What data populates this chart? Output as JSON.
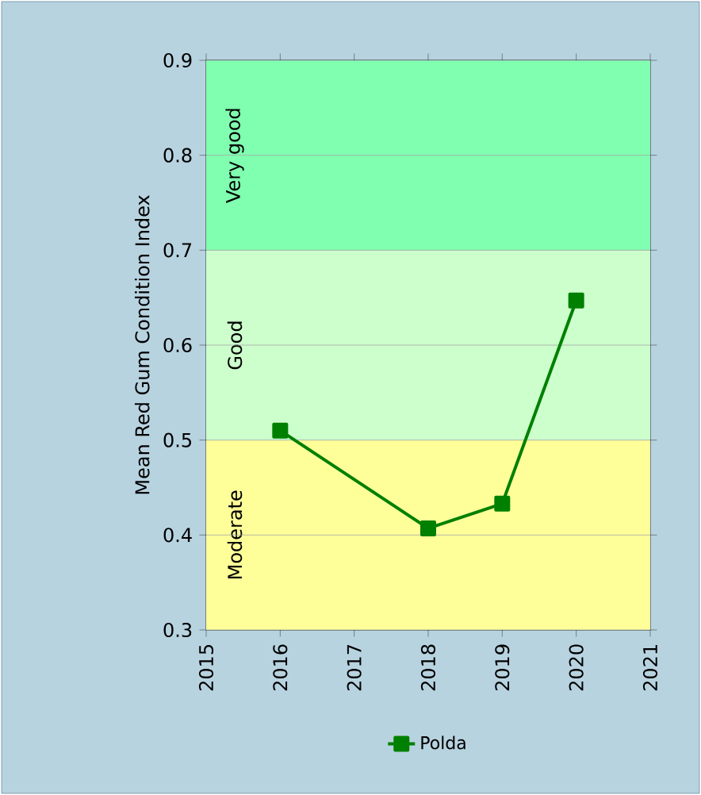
{
  "chart_data": {
    "type": "line",
    "ylabel": "Mean Red Gum Condition Index",
    "x": [
      2016,
      2018,
      2019,
      2020
    ],
    "series": [
      {
        "name": "Polda",
        "color": "#008000",
        "values": [
          0.51,
          0.407,
          0.433,
          0.647
        ]
      }
    ],
    "xlim": [
      2015,
      2021
    ],
    "xticks": [
      2015,
      2016,
      2017,
      2018,
      2019,
      2020,
      2021
    ],
    "ylim": [
      0.3,
      0.9
    ],
    "yticks": [
      0.3,
      0.4,
      0.5,
      0.6,
      0.7,
      0.8,
      0.9
    ],
    "bands": [
      {
        "axis": "y",
        "from": 0.3,
        "to": 0.5,
        "label": "Moderate",
        "color": "#ffff99"
      },
      {
        "axis": "y",
        "from": 0.5,
        "to": 0.7,
        "label": "Good",
        "color": "#ccffcc"
      },
      {
        "axis": "y",
        "from": 0.7,
        "to": 0.9,
        "label": "Very good",
        "color": "#80ffb0"
      }
    ],
    "grid": "y",
    "legend": "bottom",
    "marker": "square",
    "line_style": "solid"
  }
}
